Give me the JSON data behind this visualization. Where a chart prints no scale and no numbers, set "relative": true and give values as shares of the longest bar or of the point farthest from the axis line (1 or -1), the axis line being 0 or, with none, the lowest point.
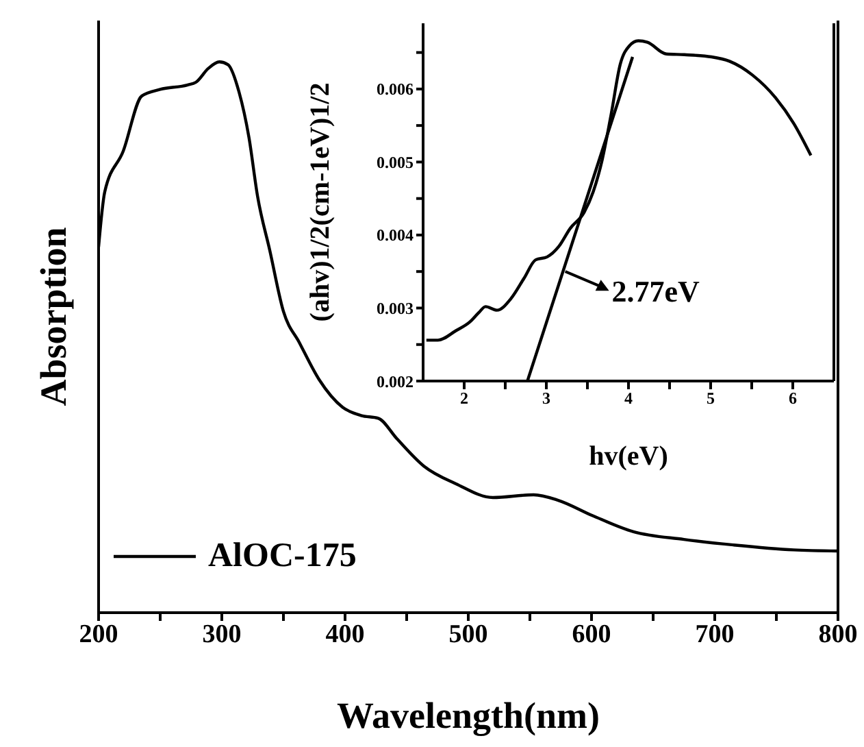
{
  "chart_data": [
    {
      "type": "line",
      "relative": true,
      "xlabel": "Wavelength(nm)",
      "ylabel": "Absorption",
      "xlim": [
        200,
        800
      ],
      "xticks": [
        200,
        {
          "value": 250,
          "label": null
        },
        300,
        {
          "value": 350,
          "label": null
        },
        400,
        {
          "value": 450,
          "label": null
        },
        500,
        {
          "value": 550,
          "label": null
        },
        600,
        {
          "value": 650,
          "label": null
        },
        700,
        {
          "value": 750,
          "label": null
        },
        800
      ],
      "legend": "bottom left",
      "grid": false,
      "series": [
        {
          "name": "AlOC-175",
          "color": "#000000",
          "x": [
            200,
            205,
            220,
            235,
            250,
            272,
            279,
            289,
            298,
            305,
            314,
            322,
            329,
            339,
            350,
            363,
            379,
            398,
            413,
            427,
            442,
            464,
            490,
            520,
            553,
            573,
            601,
            634,
            675,
            715,
            764,
            800
          ],
          "values": [
            0.664,
            0.764,
            0.838,
            0.938,
            0.95,
            0.958,
            0.963,
            0.988,
            1,
            0.995,
            0.945,
            0.863,
            0.756,
            0.657,
            0.547,
            0.49,
            0.423,
            0.373,
            0.358,
            0.353,
            0.316,
            0.266,
            0.234,
            0.209,
            0.214,
            0.204,
            0.176,
            0.147,
            0.133,
            0.123,
            0.114,
            0.112
          ]
        }
      ]
    },
    {
      "type": "line",
      "xlabel": "hv(eV)",
      "ylabel": "(ahv)1/2(cm-1eV)1/2",
      "xlim": [
        1.5,
        6.5
      ],
      "xticks": [
        2,
        {
          "value": 2.5,
          "label": null
        },
        3,
        {
          "value": 3.5,
          "label": null
        },
        4,
        {
          "value": 4.5,
          "label": null
        },
        5,
        {
          "value": 5.5,
          "label": null
        },
        6
      ],
      "ylim": [
        0.002,
        0.0069
      ],
      "yticks": [
        0.002,
        {
          "value": 0.0025,
          "label": null
        },
        0.003,
        {
          "value": 0.0035,
          "label": null
        },
        0.004,
        {
          "value": 0.0045,
          "label": null
        },
        0.005,
        {
          "value": 0.0055,
          "label": null
        },
        0.006,
        {
          "value": 0.0065,
          "label": null
        }
      ],
      "grid": false,
      "annotations": [
        {
          "text": "2.77eV",
          "x": 3.23,
          "y": 0.0035
        }
      ],
      "series": [
        {
          "color": "#000000",
          "x": [
            1.54,
            1.68,
            1.9,
            2.07,
            2.18,
            2.26,
            2.4,
            2.57,
            2.73,
            2.87,
            3.01,
            3.15,
            3.29,
            3.46,
            3.57,
            3.68,
            3.79,
            3.9,
            4.01,
            4.12,
            4.23,
            4.46,
            4.68,
            5.01,
            5.23,
            5.51,
            5.79,
            6.01,
            6.22
          ],
          "values": [
            0.00256,
            0.00256,
            0.00269,
            0.00281,
            0.00294,
            0.00302,
            0.00297,
            0.00313,
            0.00341,
            0.00366,
            0.0037,
            0.00384,
            0.00409,
            0.00431,
            0.00459,
            0.00503,
            0.00566,
            0.00634,
            0.00659,
            0.00666,
            0.00664,
            0.00648,
            0.00647,
            0.00644,
            0.00638,
            0.00619,
            0.00588,
            0.00553,
            0.00509
          ]
        },
        {
          "color": "#000000",
          "x": [
            2.77,
            4.05
          ],
          "values": [
            0.002,
            0.00644
          ]
        }
      ]
    }
  ]
}
